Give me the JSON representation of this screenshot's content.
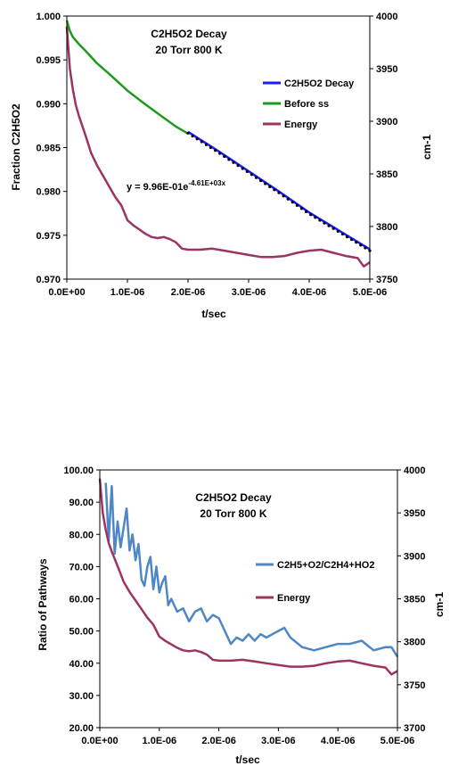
{
  "chart_data": [
    {
      "type": "line",
      "title": "C2H5O2 Decay",
      "subtitle": "20 Torr 800 K",
      "xlabel": "t/sec",
      "ylabel_left": "Fraction C2H5O2",
      "ylabel_right": "cm-1",
      "xlim": [
        0,
        5e-06
      ],
      "ylim_left": [
        0.97,
        1.0
      ],
      "ylim_right": [
        3750,
        4000
      ],
      "x_ticks": [
        "0.0E+00",
        "1.0E-06",
        "2.0E-06",
        "3.0E-06",
        "4.0E-06",
        "5.0E-06"
      ],
      "y_ticks_left": [
        "0.970",
        "0.975",
        "0.980",
        "0.985",
        "0.990",
        "0.995",
        "1.000"
      ],
      "y_ticks_right": [
        "3750",
        "3800",
        "3850",
        "3900",
        "3950",
        "4000"
      ],
      "equation": "y = 9.96E-01e",
      "equation_exp": "-4.61E+03x",
      "legend_position": "right",
      "series": [
        {
          "name": "C2H5O2 Decay",
          "axis": "left",
          "color": "#1a1aff",
          "x": [
            2e-06,
            2.5e-06,
            3e-06,
            3.5e-06,
            4e-06,
            4.5e-06,
            5e-06
          ],
          "y": [
            0.9868,
            0.9846,
            0.9823,
            0.98,
            0.9776,
            0.9755,
            0.9734
          ]
        },
        {
          "name": "Before ss",
          "axis": "left",
          "color": "#1f9a1f",
          "x": [
            0,
            5e-08,
            1e-07,
            2e-07,
            3e-07,
            5e-07,
            7e-07,
            1e-06,
            1.3e-06,
            1.6e-06,
            1.8e-06,
            2e-06
          ],
          "y": [
            0.9995,
            0.9983,
            0.9976,
            0.9968,
            0.9961,
            0.9946,
            0.9934,
            0.9915,
            0.9899,
            0.9884,
            0.9874,
            0.9866
          ]
        },
        {
          "name": "Energy",
          "axis": "right",
          "color": "#9b3462",
          "x": [
            0,
            5e-08,
            1e-07,
            1.5e-07,
            2e-07,
            3e-07,
            4e-07,
            5e-07,
            6e-07,
            7e-07,
            8e-07,
            9e-07,
            1e-06,
            1.1e-06,
            1.2e-06,
            1.3e-06,
            1.4e-06,
            1.5e-06,
            1.6e-06,
            1.7e-06,
            1.8e-06,
            1.9e-06,
            2e-06,
            2.2e-06,
            2.4e-06,
            2.6e-06,
            2.8e-06,
            3e-06,
            3.2e-06,
            3.4e-06,
            3.6e-06,
            3.8e-06,
            4e-06,
            4.2e-06,
            4.4e-06,
            4.6e-06,
            4.8e-06,
            4.9e-06,
            5e-06
          ],
          "y": [
            3990,
            3950,
            3930,
            3915,
            3905,
            3888,
            3870,
            3858,
            3848,
            3838,
            3828,
            3820,
            3806,
            3801,
            3797,
            3793,
            3790,
            3789,
            3790,
            3788,
            3785,
            3779,
            3778,
            3778,
            3779,
            3777,
            3775,
            3773,
            3771,
            3771,
            3772,
            3775,
            3777,
            3778,
            3775,
            3772,
            3770,
            3762,
            3766
          ]
        }
      ]
    },
    {
      "type": "line",
      "title": "C2H5O2 Decay",
      "subtitle": "20 Torr 800 K",
      "xlabel": "t/sec",
      "ylabel_left": "Ratio of Pathways",
      "ylabel_right": "cm-1",
      "xlim": [
        0,
        5e-06
      ],
      "ylim_left": [
        20,
        100
      ],
      "ylim_right": [
        3700,
        4000
      ],
      "x_ticks": [
        "0.0E+00",
        "1.0E-06",
        "2.0E-06",
        "3.0E-06",
        "4.0E-06",
        "5.0E-06"
      ],
      "y_ticks_left": [
        "20.00",
        "30.00",
        "40.00",
        "50.00",
        "60.00",
        "70.00",
        "80.00",
        "90.00",
        "100.00"
      ],
      "y_ticks_right": [
        "3700",
        "3750",
        "3800",
        "3850",
        "3900",
        "3950",
        "4000"
      ],
      "legend_position": "right",
      "series": [
        {
          "name": "C2H5+O2/C2H4+HO2",
          "axis": "left",
          "color": "#4f86c6",
          "x": [
            1e-07,
            1.5e-07,
            2e-07,
            2.5e-07,
            3e-07,
            3.5e-07,
            4e-07,
            4.5e-07,
            5e-07,
            5.5e-07,
            6e-07,
            6.5e-07,
            7e-07,
            7.5e-07,
            8e-07,
            8.5e-07,
            9e-07,
            9.5e-07,
            1e-06,
            1.05e-06,
            1.1e-06,
            1.15e-06,
            1.2e-06,
            1.3e-06,
            1.4e-06,
            1.5e-06,
            1.6e-06,
            1.7e-06,
            1.8e-06,
            1.9e-06,
            2e-06,
            2.1e-06,
            2.2e-06,
            2.3e-06,
            2.4e-06,
            2.5e-06,
            2.6e-06,
            2.7e-06,
            2.8e-06,
            2.9e-06,
            3e-06,
            3.1e-06,
            3.2e-06,
            3.4e-06,
            3.6e-06,
            3.8e-06,
            4e-06,
            4.2e-06,
            4.4e-06,
            4.6e-06,
            4.8e-06,
            4.9e-06,
            5e-06
          ],
          "y": [
            96,
            78,
            95,
            74,
            84,
            76,
            82,
            88,
            75,
            80,
            72,
            77,
            66,
            64,
            70,
            73,
            63,
            70,
            62,
            65,
            67,
            58,
            60,
            56,
            57,
            53,
            56,
            57,
            53,
            55,
            54,
            50,
            46,
            48,
            47,
            49,
            47,
            49,
            48,
            49,
            50,
            51,
            48,
            45,
            44,
            45,
            46,
            46,
            47,
            44,
            45,
            45,
            42
          ]
        },
        {
          "name": "Energy",
          "axis": "right",
          "color": "#9b3462",
          "x": [
            0,
            5e-08,
            1e-07,
            1.5e-07,
            2e-07,
            3e-07,
            4e-07,
            5e-07,
            6e-07,
            7e-07,
            8e-07,
            9e-07,
            1e-06,
            1.1e-06,
            1.2e-06,
            1.3e-06,
            1.4e-06,
            1.5e-06,
            1.6e-06,
            1.7e-06,
            1.8e-06,
            1.9e-06,
            2e-06,
            2.2e-06,
            2.4e-06,
            2.6e-06,
            2.8e-06,
            3e-06,
            3.2e-06,
            3.4e-06,
            3.6e-06,
            3.8e-06,
            4e-06,
            4.2e-06,
            4.4e-06,
            4.6e-06,
            4.8e-06,
            4.9e-06,
            5e-06
          ],
          "y": [
            3990,
            3950,
            3930,
            3915,
            3905,
            3888,
            3870,
            3858,
            3848,
            3838,
            3828,
            3820,
            3806,
            3801,
            3797,
            3793,
            3790,
            3789,
            3790,
            3788,
            3785,
            3779,
            3778,
            3778,
            3779,
            3777,
            3775,
            3773,
            3771,
            3771,
            3772,
            3775,
            3777,
            3778,
            3775,
            3772,
            3770,
            3762,
            3766
          ]
        }
      ]
    }
  ]
}
